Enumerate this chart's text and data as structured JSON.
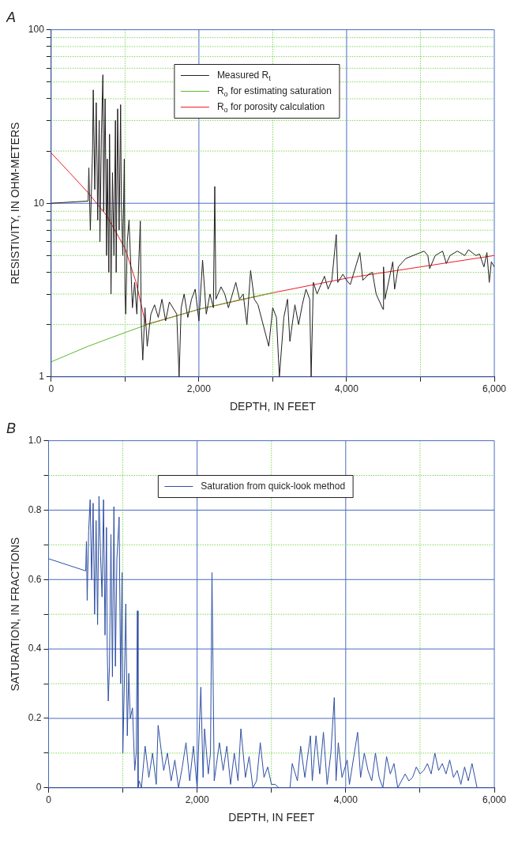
{
  "chart_data": [
    {
      "type": "line",
      "title": "A",
      "xlabel": "DEPTH, IN FEET",
      "ylabel": "RESISTIVITY, IN OHM-METERS",
      "log": "y",
      "grid": true,
      "legend": "top",
      "marker": "none",
      "xlim": [
        0,
        6000
      ],
      "xticks": [
        0,
        {
          "value": 1000,
          "label": null
        },
        {
          "value": 2000,
          "label": "2,000"
        },
        {
          "value": 3000,
          "label": null
        },
        {
          "value": 4000,
          "label": "4,000"
        },
        {
          "value": 5000,
          "label": null
        },
        {
          "value": 6000,
          "label": "6,000"
        }
      ],
      "ylim": [
        1,
        100
      ],
      "yticks": [
        1,
        {
          "value": 2,
          "label": null
        },
        {
          "value": 3,
          "label": null
        },
        {
          "value": 4,
          "label": null
        },
        {
          "value": 5,
          "label": null
        },
        {
          "value": 6,
          "label": null
        },
        {
          "value": 7,
          "label": null
        },
        {
          "value": 8,
          "label": null
        },
        {
          "value": 9,
          "label": null
        },
        10,
        {
          "value": 20,
          "label": null
        },
        {
          "value": 30,
          "label": null
        },
        {
          "value": 40,
          "label": null
        },
        {
          "value": 50,
          "label": null
        },
        {
          "value": 60,
          "label": null
        },
        {
          "value": 70,
          "label": null
        },
        {
          "value": 80,
          "label": null
        },
        {
          "value": 90,
          "label": null
        },
        100
      ],
      "series": [
        {
          "name": "Measured R$_{t}$",
          "color": "#231f20",
          "x": [
            0,
            500,
            510,
            530,
            560,
            570,
            590,
            610,
            630,
            650,
            660,
            680,
            700,
            710,
            730,
            750,
            760,
            780,
            790,
            810,
            830,
            850,
            870,
            880,
            900,
            920,
            940,
            950,
            970,
            990,
            1000,
            1010,
            1030,
            1054,
            1100,
            1130,
            1160,
            1207,
            1220,
            1240,
            1270,
            1300,
            1350,
            1400,
            1450,
            1500,
            1550,
            1600,
            1700,
            1732,
            1760,
            1800,
            1850,
            1900,
            1950,
            2000,
            2050,
            2100,
            2150,
            2196,
            2215,
            2230,
            2300,
            2350,
            2400,
            2500,
            2550,
            2600,
            2650,
            2700,
            2750,
            2800,
            2946,
            3000,
            3050,
            3090,
            3150,
            3200,
            3232,
            3300,
            3350,
            3400,
            3450,
            3500,
            3520,
            3550,
            3600,
            3700,
            3750,
            3800,
            3860,
            3880,
            3950,
            4000,
            4050,
            4180,
            4220,
            4300,
            4350,
            4400,
            4493,
            4500,
            4520,
            4625,
            4650,
            4700,
            4800,
            4900,
            5000,
            5050,
            5100,
            5125,
            5200,
            5300,
            5350,
            5400,
            5500,
            5600,
            5650,
            5750,
            5800,
            5860,
            5900,
            5932,
            5960,
            6000
          ],
          "values": [
            10,
            10.3,
            16,
            7,
            20,
            45,
            12,
            38,
            8,
            30,
            6,
            25,
            55,
            9,
            40,
            5,
            18,
            4,
            25,
            3,
            15,
            5,
            30,
            4,
            35,
            7,
            37,
            10,
            5,
            18,
            3,
            2.3,
            6,
            8,
            2.5,
            3.5,
            2.3,
            7.9,
            2,
            1.25,
            2.5,
            1.5,
            2.3,
            2.6,
            2.2,
            2.8,
            2.1,
            2.7,
            2.3,
            1,
            2.5,
            3,
            2.2,
            2.8,
            3.2,
            2.1,
            4.7,
            2.3,
            3,
            2.5,
            12.5,
            2.8,
            3.3,
            3,
            2.5,
            3.5,
            2.8,
            3,
            2,
            4.1,
            2.8,
            2.6,
            1.5,
            2.5,
            2.2,
            1,
            2.2,
            2.8,
            1.6,
            2.6,
            2,
            2.6,
            3.2,
            2.8,
            1,
            3.5,
            3,
            3.8,
            3.2,
            3.6,
            6.6,
            3.5,
            3.9,
            3.6,
            3.4,
            5.2,
            3.6,
            3.9,
            4,
            3,
            2.45,
            4.3,
            2.8,
            4.6,
            3.2,
            4.3,
            4.8,
            5,
            5.2,
            5.3,
            5,
            4.2,
            5,
            5.3,
            4.5,
            5,
            5.3,
            5,
            5.4,
            5,
            5.1,
            4.3,
            5.2,
            3.5,
            4.6,
            4.3
          ]
        },
        {
          "name": "R$_{o}$ for estimating saturation",
          "color": "#5cb82e",
          "x": [
            0,
            500,
            1000,
            1300,
            2000,
            2500,
            3000
          ],
          "values": [
            1.22,
            1.5,
            1.8,
            2,
            2.45,
            2.75,
            3.05
          ]
        },
        {
          "name": "R$_{o}$ for porosity calculation",
          "color": "#ee1c24",
          "x": [
            0,
            250,
            500,
            750,
            1000,
            1150,
            1280,
            2000,
            3000,
            4000,
            5000,
            6000
          ],
          "values": [
            19.5,
            15,
            11.5,
            8.5,
            5.5,
            3.5,
            2,
            2.45,
            3.05,
            3.7,
            4.3,
            5
          ]
        }
      ]
    },
    {
      "type": "line",
      "title": "B",
      "xlabel": "DEPTH, IN FEET",
      "ylabel": "SATURATION, IN FRACTIONS",
      "grid": true,
      "legend": "top",
      "marker": "none",
      "xlim": [
        0,
        6000
      ],
      "xticks": [
        0,
        {
          "value": 1000,
          "label": null
        },
        {
          "value": 2000,
          "label": "2,000"
        },
        {
          "value": 3000,
          "label": null
        },
        {
          "value": 4000,
          "label": "4,000"
        },
        {
          "value": 5000,
          "label": null
        },
        {
          "value": 6000,
          "label": "6,000"
        }
      ],
      "ylim": [
        0,
        1
      ],
      "yticks": [
        0,
        {
          "value": 0.1,
          "label": null
        },
        0.2,
        {
          "value": 0.3,
          "label": null
        },
        0.4,
        {
          "value": 0.5,
          "label": null
        },
        0.6,
        {
          "value": 0.7,
          "label": null
        },
        0.8,
        {
          "value": 0.9,
          "label": null
        },
        {
          "value": 1,
          "label": "1.0"
        }
      ],
      "series": [
        {
          "name": "Saturation from quick-look method",
          "color": "#2e4fa3",
          "x": [
            0,
            500,
            510,
            520,
            540,
            560,
            580,
            600,
            620,
            640,
            660,
            679,
            700,
            720,
            740,
            760,
            780,
            790,
            804,
            820,
            840,
            860,
            880,
            900,
            920,
            950,
            970,
            990,
            1000,
            1020,
            1040,
            1060,
            1080,
            1100,
            1130,
            1160,
            1180,
            1196,
            1205,
            1220,
            1250,
            1300,
            1350,
            1400,
            1450,
            1475,
            1550,
            1600,
            1650,
            1700,
            1750,
            1800,
            1850,
            1900,
            1950,
            2000,
            2050,
            2080,
            2100,
            2150,
            2180,
            2200,
            2230,
            2300,
            2350,
            2400,
            2450,
            2500,
            2550,
            2589,
            2650,
            2700,
            2750,
            2800,
            2850,
            2900,
            2950,
            3000,
            3050,
            3100,
            3250,
            3280,
            3350,
            3393,
            3450,
            3525,
            3550,
            3600,
            3650,
            3700,
            3750,
            3800,
            3846,
            3870,
            3900,
            3950,
            4020,
            4050,
            4160,
            4200,
            4250,
            4300,
            4350,
            4400,
            4450,
            4500,
            4550,
            4600,
            4650,
            4700,
            4750,
            4800,
            4850,
            4900,
            4950,
            5000,
            5050,
            5100,
            5150,
            5200,
            5250,
            5300,
            5350,
            5400,
            5450,
            5500,
            5550,
            5600,
            5650,
            5700,
            5768
          ],
          "values": [
            0.66,
            0.625,
            0.71,
            0.54,
            0.74,
            0.83,
            0.6,
            0.82,
            0.5,
            0.77,
            0.47,
            0.84,
            0.67,
            0.55,
            0.83,
            0.44,
            0.75,
            0.4,
            0.25,
            0.35,
            0.73,
            0.32,
            0.81,
            0.35,
            0.66,
            0.78,
            0.3,
            0.62,
            0.1,
            0.3,
            0.53,
            0.15,
            0.33,
            0.2,
            0.23,
            0.05,
            0.1,
            0.51,
            0,
            0.02,
            0,
            0.12,
            0.03,
            0.1,
            0.01,
            0.18,
            0.05,
            0.1,
            0.02,
            0.08,
            0,
            0.06,
            0.13,
            0.02,
            0.12,
            0,
            0.29,
            0.03,
            0.17,
            0.04,
            0.1,
            0.62,
            0.02,
            0.13,
            0.05,
            0.12,
            0.01,
            0.1,
            0.02,
            0.17,
            0.03,
            0.09,
            0,
            0.02,
            0.13,
            0.03,
            0.06,
            0.01,
            0.01,
            0,
            0,
            0.07,
            0.02,
            0.12,
            0.03,
            0.15,
            0.02,
            0.15,
            0.04,
            0.16,
            0.01,
            0.1,
            0.26,
            0.02,
            0.13,
            0.03,
            0.08,
            0.01,
            0.16,
            0.03,
            0.1,
            0.05,
            0.02,
            0.1,
            0.03,
            0,
            0.09,
            0.04,
            0.07,
            0,
            0.02,
            0.04,
            0.02,
            0.03,
            0.06,
            0.04,
            0.05,
            0.07,
            0.04,
            0.1,
            0.05,
            0.07,
            0.04,
            0.08,
            0.03,
            0.05,
            0.01,
            0.06,
            0.02,
            0.07,
            0
          ]
        }
      ]
    }
  ]
}
